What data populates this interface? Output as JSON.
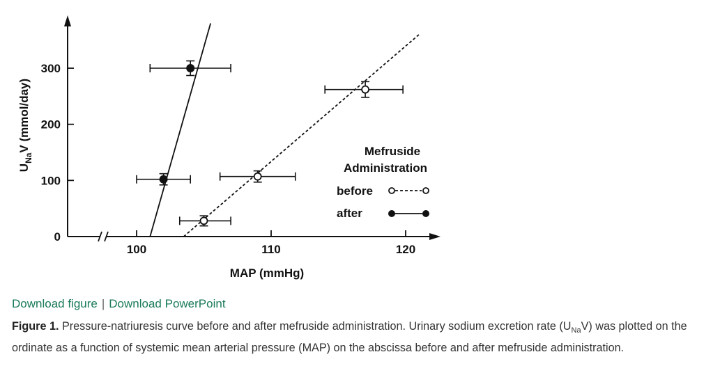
{
  "links": {
    "download_figure": "Download figure",
    "separator": "|",
    "download_powerpoint": "Download PowerPoint"
  },
  "caption": {
    "label": "Figure 1.",
    "part1": " Pressure-natriuresis curve before and after mefruside administration. Urinary sodium excretion rate (U",
    "sub": "Na",
    "part2": "V) was plotted on the ordinate as a function of systemic mean arterial pressure (MAP) on the abscissa before and after mefruside administration."
  },
  "chart_data": {
    "type": "scatter",
    "xlabel": "MAP (mmHg)",
    "ylabel": {
      "main": "U",
      "sub": "Na",
      "rest": "V (mmol/day)"
    },
    "xlim": [
      95,
      122
    ],
    "ylim": [
      0,
      380
    ],
    "x_axis_break": true,
    "x_ticks": [
      100,
      110,
      120
    ],
    "y_ticks": [
      0,
      100,
      200,
      300
    ],
    "legend": {
      "title_line1": "Mefruside",
      "title_line2": "Administration",
      "position": "right",
      "entries": [
        {
          "label": "before",
          "marker": "open-circle",
          "line": "dashed"
        },
        {
          "label": "after",
          "marker": "filled-circle",
          "line": "solid"
        }
      ]
    },
    "series": [
      {
        "name": "before",
        "marker": "open",
        "points": [
          {
            "x": 105,
            "y": 28,
            "xerr": [
              103.2,
              107.0
            ],
            "yerr": [
              19,
              37
            ]
          },
          {
            "x": 109,
            "y": 107,
            "xerr": [
              106.2,
              111.8
            ],
            "yerr": [
              97,
              117
            ]
          },
          {
            "x": 117,
            "y": 262,
            "xerr": [
              114.0,
              119.8
            ],
            "yerr": [
              248,
              276
            ]
          }
        ],
        "fit_line": {
          "x": [
            103.5,
            121
          ],
          "y": [
            0,
            360
          ]
        }
      },
      {
        "name": "after",
        "marker": "filled",
        "points": [
          {
            "x": 102,
            "y": 102,
            "xerr": [
              100.0,
              104.0
            ],
            "yerr": [
              92,
              112
            ]
          },
          {
            "x": 104,
            "y": 300,
            "xerr": [
              101.0,
              107.0
            ],
            "yerr": [
              287,
              313
            ]
          }
        ],
        "fit_line": {
          "x": [
            101,
            105.5
          ],
          "y": [
            0,
            380
          ]
        }
      }
    ]
  }
}
